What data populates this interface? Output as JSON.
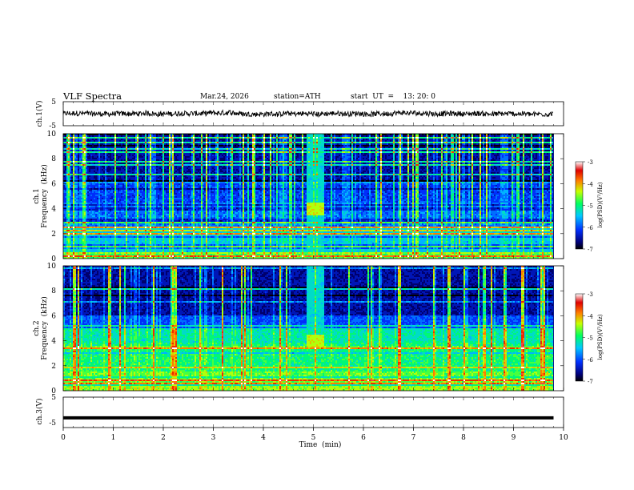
{
  "header": {
    "title": "VLF  Spectra",
    "date": "Mar.24, 2026",
    "station": "station=ATH",
    "start_ut": "start  UT  =    13: 20: 0"
  },
  "chart_data": [
    {
      "type": "line",
      "name": "ch1-waveform",
      "ylabel": "ch.1(V)",
      "ylim": [
        -5,
        5
      ],
      "yticks": [
        "5",
        "-5"
      ],
      "xlim": [
        0,
        10
      ],
      "trace_extent_min": [
        0,
        9.8
      ],
      "series": [
        {
          "name": "ch.1",
          "level": 0,
          "noise_amplitude": 1.1
        }
      ]
    },
    {
      "type": "heatmap",
      "name": "ch1-spectrogram",
      "ylabel": "ch.1\nFrequency  (kHz)",
      "ylabel_line1": "ch.1",
      "ylabel_line2": "Frequency  (kHz)",
      "ylim": [
        0,
        10
      ],
      "yticks": [
        "0",
        "2",
        "4",
        "6",
        "8",
        "10"
      ],
      "xlim": [
        0,
        10
      ],
      "data_extent_min": [
        0,
        9.8
      ],
      "event": {
        "start_min": 4.85,
        "end_min": 5.2,
        "band_khz": [
          3.5,
          4.5
        ]
      },
      "colorbar": {
        "label": "log(PSD)(V²/Hz)",
        "ticks": [
          "-3",
          "-4",
          "-5",
          "-6",
          "-7"
        ],
        "range": [
          -7,
          -3
        ]
      }
    },
    {
      "type": "heatmap",
      "name": "ch2-spectrogram",
      "ylabel": "ch.2\nFrequency  (kHz)",
      "ylabel_line1": "ch.2",
      "ylabel_line2": "Frequency  (kHz)",
      "ylim": [
        0,
        10
      ],
      "yticks": [
        "0",
        "2",
        "4",
        "6",
        "8",
        "10"
      ],
      "xlim": [
        0,
        10
      ],
      "data_extent_min": [
        0,
        9.8
      ],
      "event": {
        "start_min": 4.85,
        "end_min": 5.2,
        "band_khz": [
          3.5,
          4.5
        ]
      },
      "colorbar": {
        "label": "log(PSD)(V²/Hz)",
        "ticks": [
          "-3",
          "-4",
          "-5",
          "-6",
          "-7"
        ],
        "range": [
          -7,
          -3
        ]
      }
    },
    {
      "type": "line",
      "name": "ch3-waveform",
      "ylabel": "ch.3(V)",
      "ylim": [
        -5,
        5
      ],
      "yticks": [
        "5",
        "-5"
      ],
      "xlim": [
        0,
        10
      ],
      "series": [
        {
          "name": "ch.3",
          "level": -1.8,
          "noise_amplitude": 0
        }
      ]
    }
  ],
  "xaxis": {
    "label": "Time  (min)",
    "ticks": [
      "0",
      "1",
      "2",
      "3",
      "4",
      "5",
      "6",
      "7",
      "8",
      "9",
      "10"
    ]
  }
}
